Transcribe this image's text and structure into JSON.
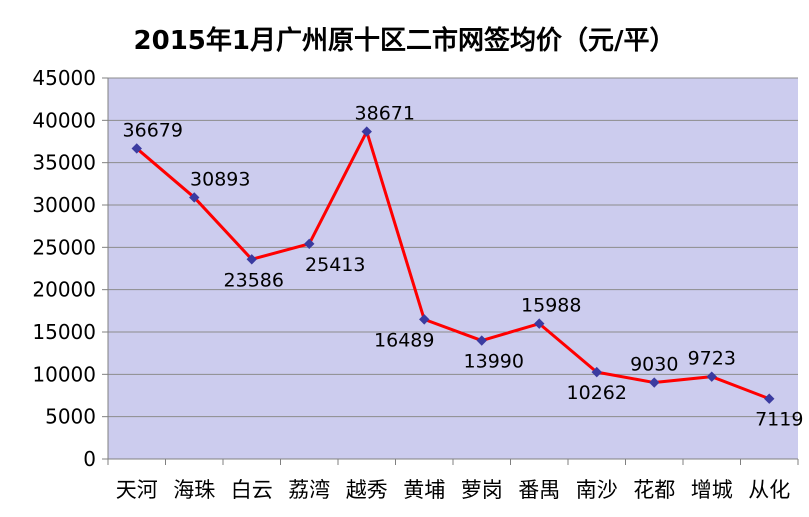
{
  "colors": {
    "plot_background": "#ccccee",
    "line": "#ff0000",
    "marker": "#3b3ba0",
    "grid": "#8c8c8c"
  },
  "chart_data": {
    "type": "line",
    "title": "2015年1月广州原十区二市网签均价（元/平）",
    "xlabel": "",
    "ylabel": "",
    "categories": [
      "天河",
      "海珠",
      "白云",
      "荔湾",
      "越秀",
      "黄埔",
      "萝岗",
      "番禺",
      "南沙",
      "花都",
      "增城",
      "从化"
    ],
    "series": [
      {
        "values": [
          36679,
          30893,
          23586,
          25413,
          38671,
          16489,
          13990,
          15988,
          10262,
          9030,
          9723,
          7119
        ]
      }
    ],
    "data_labels": [
      "36679",
      "30893",
      "23586",
      "25413",
      "38671",
      "16489",
      "13990",
      "15988",
      "10262",
      "9030",
      "9723",
      "7119"
    ],
    "ylim": [
      0,
      45000
    ],
    "yticks": [
      "0",
      "5000",
      "10000",
      "15000",
      "20000",
      "25000",
      "30000",
      "35000",
      "40000",
      "45000"
    ],
    "grid": true,
    "legend": "none"
  }
}
